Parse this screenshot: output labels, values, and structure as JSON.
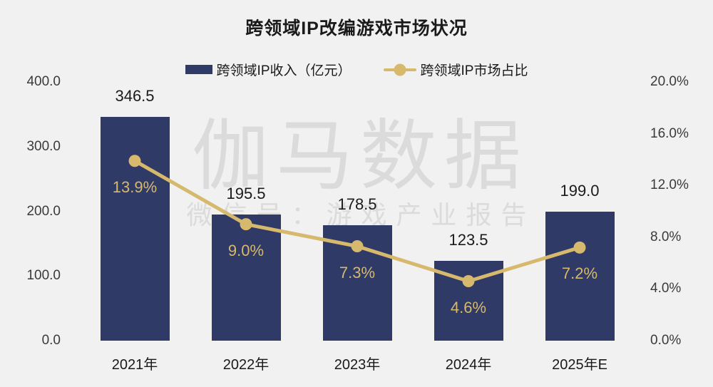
{
  "title": "跨领域IP改编游戏市场状况",
  "legend": {
    "bar_label": "跨领域IP收入（亿元）",
    "line_label": "跨领域IP市场占比"
  },
  "watermark": {
    "brand": "伽马数据",
    "wechat": "微信号：游戏产业报告"
  },
  "colors": {
    "background": "#F1F1F1",
    "bar": "#2F3A66",
    "line": "#D6B96D",
    "text": "#1A1A1A",
    "axis_text": "#3A3A3A",
    "watermark": "#DBDBDB"
  },
  "chart_data": {
    "type": "bar+line",
    "title": "跨领域IP改编游戏市场状况",
    "categories": [
      "2021年",
      "2022年",
      "2023年",
      "2024年",
      "2025年E"
    ],
    "series": [
      {
        "name": "跨领域IP收入（亿元）",
        "type": "bar",
        "axis": "left",
        "values": [
          346.5,
          195.5,
          178.5,
          123.5,
          199.0
        ],
        "labels": [
          "346.5",
          "195.5",
          "178.5",
          "123.5",
          "199.0"
        ]
      },
      {
        "name": "跨领域IP市场占比",
        "type": "line",
        "axis": "right",
        "values": [
          13.9,
          9.0,
          7.3,
          4.6,
          7.2
        ],
        "labels": [
          "13.9%",
          "9.0%",
          "7.3%",
          "4.6%",
          "7.2%"
        ]
      }
    ],
    "left_axis": {
      "ticks": [
        "400.0",
        "300.0",
        "200.0",
        "100.0",
        "0.0"
      ],
      "values": [
        400,
        300,
        200,
        100,
        0
      ],
      "range": [
        0,
        400
      ]
    },
    "right_axis": {
      "ticks": [
        "20.0%",
        "16.0%",
        "12.0%",
        "8.0%",
        "4.0%",
        "0.0%"
      ],
      "values": [
        20,
        16,
        12,
        8,
        4,
        0
      ],
      "range": [
        0,
        20
      ]
    },
    "grid": false,
    "legend_position": "top"
  }
}
